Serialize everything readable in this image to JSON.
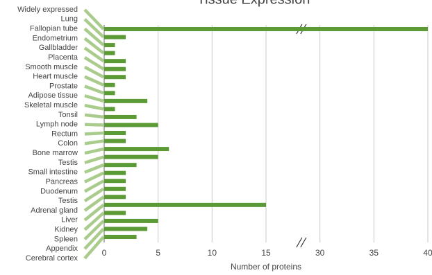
{
  "chart_data": {
    "type": "bar",
    "orientation": "horizontal",
    "title": "Tissue Expression",
    "xlabel": "Number of proteins",
    "categories": [
      "Widely expressed",
      "Lung",
      "Fallopian tube",
      "Endometrium",
      "Gallbladder",
      "Placenta",
      "Smooth muscle",
      "Heart muscle",
      "Prostate",
      "Adipose tissue",
      "Skeletal muscle",
      "Tonsil",
      "Lymph node",
      "Rectum",
      "Colon",
      "Bone marrow",
      "Testis",
      "Small intestine",
      "Pancreas",
      "Duodenum",
      "Testis",
      "Adrenal gland",
      "Liver",
      "Kidney",
      "Spleen",
      "Appendix",
      "Cerebral cortex"
    ],
    "values": [
      40,
      2,
      1,
      1,
      2,
      2,
      2,
      1,
      1,
      4,
      1,
      3,
      5,
      2,
      2,
      6,
      5,
      3,
      2,
      2,
      2,
      2,
      15,
      2,
      5,
      4,
      3
    ],
    "color": "#5b9a35",
    "connector_color": "#a9cc8c",
    "xlim": [
      0,
      40
    ],
    "xticks": [
      0,
      5,
      10,
      15,
      30,
      35,
      40
    ],
    "axis_break": true,
    "grid": true
  }
}
